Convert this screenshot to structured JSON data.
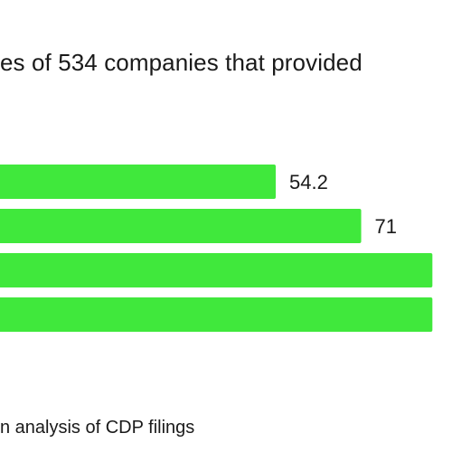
{
  "subtitle": "es of 534 companies that provided",
  "source": "n analysis of CDP filings",
  "colors": {
    "bar": "#40e83c",
    "text": "#1a1a1a",
    "background": "#ffffff"
  },
  "chart_data": {
    "type": "bar",
    "orientation": "horizontal",
    "subtitle": "es of 534 companies that provided",
    "series": [
      {
        "values": [
          54.2,
          71,
          85,
          85
        ],
        "data_labels": [
          "54.2",
          "71",
          "",
          ""
        ]
      }
    ],
    "grid": false,
    "legend": "none",
    "note": "Image is cropped; category labels and the end of the longer bars are outside the visible area."
  }
}
